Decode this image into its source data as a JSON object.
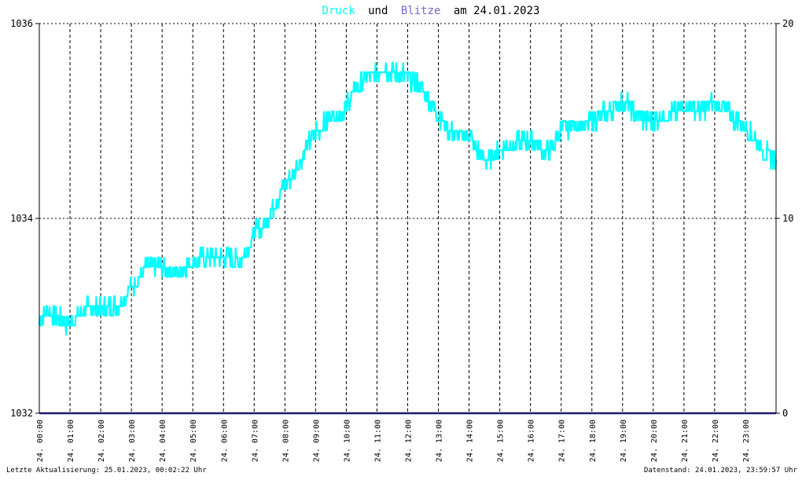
{
  "title": {
    "word1": "Druck",
    "word2": "und",
    "word3": "Blitze",
    "word4": "am 24.01.2023",
    "color1": "#00ffff",
    "color2": "#000000",
    "color3": "#7b68c8",
    "color4": "#000000"
  },
  "footer": {
    "left": "Letzte Aktualisierung: 25.01.2023, 00:02:22 Uhr",
    "right": "Datenstand: 24.01.2023, 23:59:57 Uhr"
  },
  "chart_data": {
    "type": "line",
    "title": "Druck und Blitze am 24.01.2023",
    "y_left": {
      "min": 1032,
      "max": 1036,
      "ticks": [
        "1032",
        "1034",
        "1036"
      ]
    },
    "y_right": {
      "min": 0,
      "max": 20,
      "ticks": [
        "0",
        "10",
        "20"
      ]
    },
    "x_range_hours": [
      0,
      24
    ],
    "x_ticks": [
      "24. 00:00",
      "24. 01:00",
      "24. 02:00",
      "24. 03:00",
      "24. 04:00",
      "24. 05:00",
      "24. 06:00",
      "24. 07:00",
      "24. 08:00",
      "24. 09:00",
      "24. 10:00",
      "24. 11:00",
      "24. 12:00",
      "24. 13:00",
      "24. 14:00",
      "24. 15:00",
      "24. 16:00",
      "24. 17:00",
      "24. 18:00",
      "24. 19:00",
      "24. 20:00",
      "24. 21:00",
      "24. 22:00",
      "24. 23:00"
    ],
    "grid": true,
    "colors": {
      "pressure": "#00ffff",
      "lightning": "#191970",
      "grid": "#000000"
    },
    "series": [
      {
        "axis": "left",
        "color": "#00ffff",
        "x_hours": [
          0,
          0.25,
          0.5,
          0.75,
          1,
          1.25,
          1.5,
          1.75,
          2,
          2.25,
          2.5,
          2.75,
          3,
          3.25,
          3.5,
          3.75,
          4,
          4.25,
          4.5,
          4.75,
          5,
          5.25,
          5.5,
          5.75,
          6,
          6.25,
          6.5,
          6.75,
          7,
          7.25,
          7.5,
          7.75,
          8,
          8.25,
          8.5,
          8.75,
          9,
          9.25,
          9.5,
          9.75,
          10,
          10.25,
          10.5,
          10.75,
          11,
          11.25,
          11.5,
          11.75,
          12,
          12.25,
          12.5,
          12.75,
          13,
          13.25,
          13.5,
          13.75,
          14,
          14.25,
          14.5,
          14.75,
          15,
          15.25,
          15.5,
          15.75,
          16,
          16.25,
          16.5,
          16.75,
          17,
          17.25,
          17.5,
          17.75,
          18,
          18.25,
          18.5,
          18.75,
          19,
          19.25,
          19.5,
          19.75,
          20,
          20.25,
          20.5,
          20.75,
          21,
          21.25,
          21.5,
          21.75,
          22,
          22.25,
          22.5,
          22.75,
          23,
          23.25,
          23.5,
          23.75,
          24
        ],
        "values": [
          1032.95,
          1033.05,
          1033.0,
          1032.95,
          1032.9,
          1033.0,
          1033.05,
          1033.1,
          1033.05,
          1033.1,
          1033.1,
          1033.2,
          1033.3,
          1033.4,
          1033.5,
          1033.5,
          1033.5,
          1033.45,
          1033.45,
          1033.5,
          1033.55,
          1033.6,
          1033.6,
          1033.6,
          1033.6,
          1033.6,
          1033.55,
          1033.65,
          1033.85,
          1033.9,
          1034.05,
          1034.2,
          1034.35,
          1034.45,
          1034.6,
          1034.75,
          1034.9,
          1034.95,
          1035.05,
          1035.05,
          1035.15,
          1035.3,
          1035.4,
          1035.45,
          1035.5,
          1035.55,
          1035.5,
          1035.5,
          1035.45,
          1035.4,
          1035.3,
          1035.2,
          1035.05,
          1034.95,
          1034.85,
          1034.85,
          1034.85,
          1034.7,
          1034.6,
          1034.65,
          1034.7,
          1034.75,
          1034.75,
          1034.8,
          1034.8,
          1034.75,
          1034.7,
          1034.75,
          1034.9,
          1034.95,
          1034.95,
          1034.95,
          1035.0,
          1035.05,
          1035.1,
          1035.15,
          1035.2,
          1035.15,
          1035.05,
          1035.0,
          1035.0,
          1035.05,
          1035.05,
          1035.1,
          1035.15,
          1035.15,
          1035.1,
          1035.15,
          1035.2,
          1035.15,
          1035.05,
          1035.0,
          1034.95,
          1034.85,
          1034.75,
          1034.65,
          1034.6
        ]
      },
      {
        "axis": "right",
        "color": "#191970",
        "x_hours": [
          0,
          24
        ],
        "values": [
          0,
          0
        ]
      }
    ]
  }
}
